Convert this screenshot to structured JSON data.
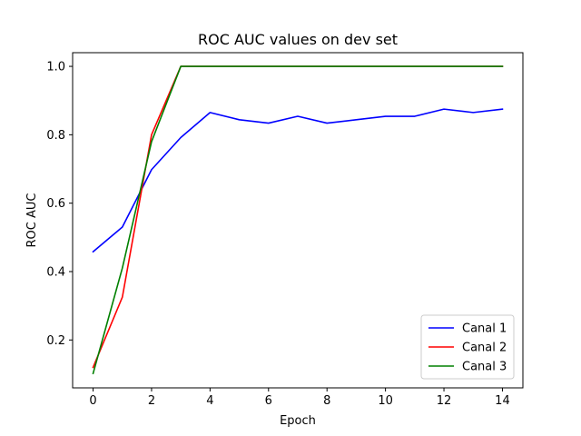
{
  "chart_data": {
    "type": "line",
    "title": "ROC AUC values on dev set",
    "xlabel": "Epoch",
    "ylabel": "ROC AUC",
    "xlim": [
      -0.7,
      14.7
    ],
    "ylim": [
      0.06,
      1.04
    ],
    "xticks": [
      0,
      2,
      4,
      6,
      8,
      10,
      12,
      14
    ],
    "yticks": [
      0.2,
      0.4,
      0.6,
      0.8,
      1.0
    ],
    "ytick_labels": [
      "0.2",
      "0.4",
      "0.6",
      "0.8",
      "1.0"
    ],
    "grid": false,
    "legend_position": "lower-right",
    "x": [
      0,
      1,
      2,
      3,
      4,
      5,
      6,
      7,
      8,
      9,
      10,
      11,
      12,
      13,
      14
    ],
    "series": [
      {
        "name": "Canal 1",
        "color": "#0000ff",
        "values": [
          0.458,
          0.53,
          0.698,
          0.792,
          0.865,
          0.844,
          0.834,
          0.854,
          0.834,
          0.844,
          0.854,
          0.854,
          0.875,
          0.865,
          0.875
        ]
      },
      {
        "name": "Canal 2",
        "color": "#ff0000",
        "values": [
          0.12,
          0.325,
          0.8,
          1.0,
          1.0,
          1.0,
          1.0,
          1.0,
          1.0,
          1.0,
          1.0,
          1.0,
          1.0,
          1.0,
          1.0
        ]
      },
      {
        "name": "Canal 3",
        "color": "#008000",
        "values": [
          0.102,
          0.41,
          0.78,
          1.0,
          1.0,
          1.0,
          1.0,
          1.0,
          1.0,
          1.0,
          1.0,
          1.0,
          1.0,
          1.0,
          1.0
        ]
      }
    ]
  }
}
